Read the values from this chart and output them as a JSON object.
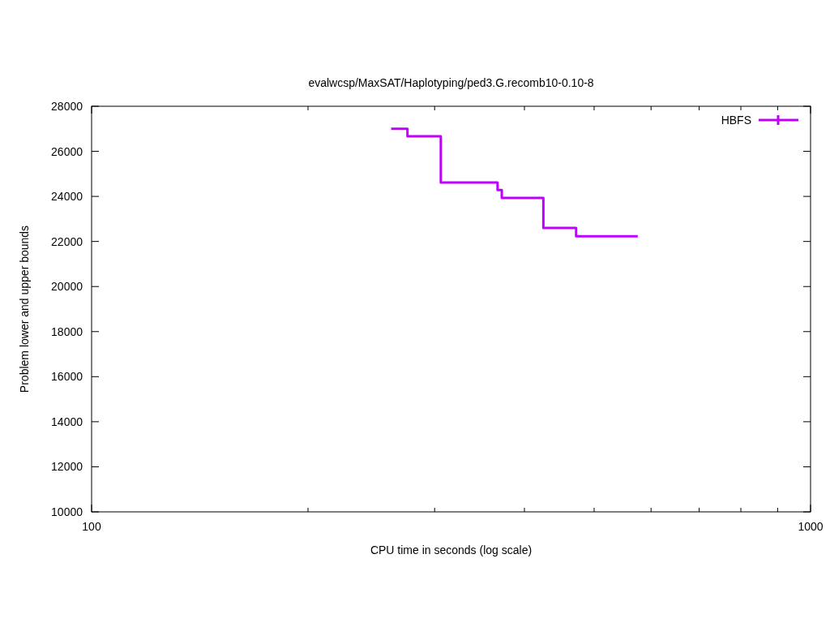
{
  "chart_data": {
    "type": "step",
    "title": "evalwcsp/MaxSAT/Haplotyping/ped3.G.recomb10-0.10-8",
    "xlabel": "CPU time in seconds (log scale)",
    "ylabel": "Problem lower and upper bounds",
    "log": "x",
    "xlim": [
      100,
      1000
    ],
    "xticks": [
      100,
      {
        "value": 200,
        "label": null
      },
      {
        "value": 300,
        "label": null
      },
      {
        "value": 400,
        "label": null
      },
      {
        "value": 500,
        "label": null
      },
      {
        "value": 600,
        "label": null
      },
      {
        "value": 700,
        "label": null
      },
      {
        "value": 800,
        "label": null
      },
      {
        "value": 900,
        "label": null
      },
      1000
    ],
    "ylim": [
      10000,
      28000
    ],
    "yticks": [
      10000,
      12000,
      14000,
      16000,
      18000,
      20000,
      22000,
      24000,
      26000,
      28000
    ],
    "grid": false,
    "legend": "top right",
    "series": [
      {
        "name": "HBFS",
        "color": "#c000ff",
        "x": [
          261,
          275,
          306,
          367,
          372,
          425,
          472,
          575
        ],
        "values": [
          27000,
          26670,
          24620,
          24280,
          23930,
          22600,
          22230,
          22230
        ]
      }
    ]
  }
}
